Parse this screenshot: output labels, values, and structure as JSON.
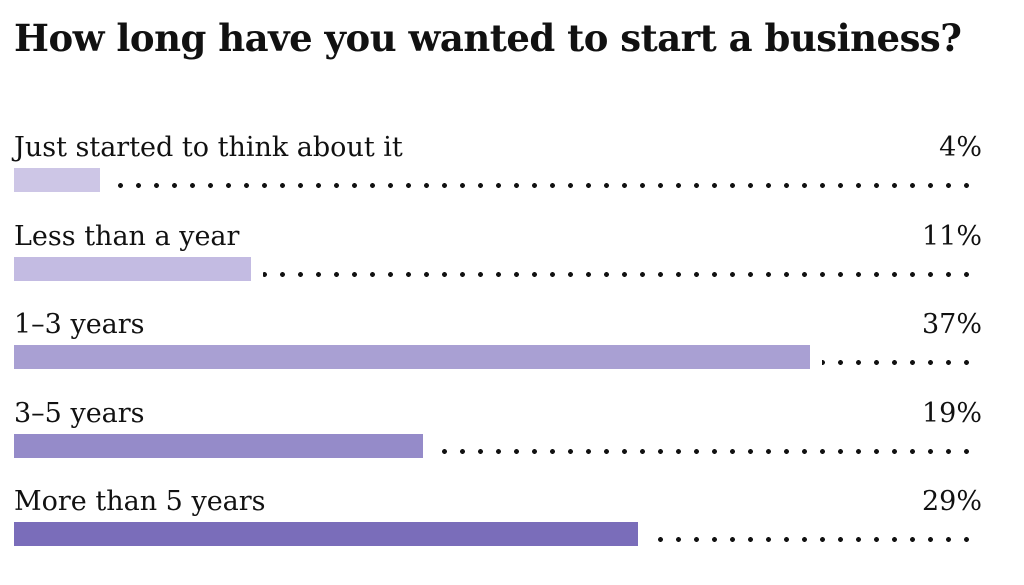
{
  "title": "How long have you wanted to start a business?",
  "chart_data": {
    "type": "bar",
    "orientation": "horizontal",
    "title": "How long have you wanted to start a business?",
    "categories": [
      "Just started to think about it",
      "Less than a year",
      "1–3 years",
      "3–5 years",
      "More than 5 years"
    ],
    "values": [
      4,
      11,
      37,
      19,
      29
    ],
    "value_labels": [
      "4%",
      "11%",
      "37%",
      "19%",
      "29%"
    ],
    "unit": "%",
    "xlim": [
      0,
      45
    ],
    "grid": false,
    "legend": "none",
    "bar_colors": [
      "#cdc6e6",
      "#c3bbe2",
      "#a9a0d3",
      "#958bc9",
      "#7a6dba"
    ],
    "track_style": "dotted"
  }
}
